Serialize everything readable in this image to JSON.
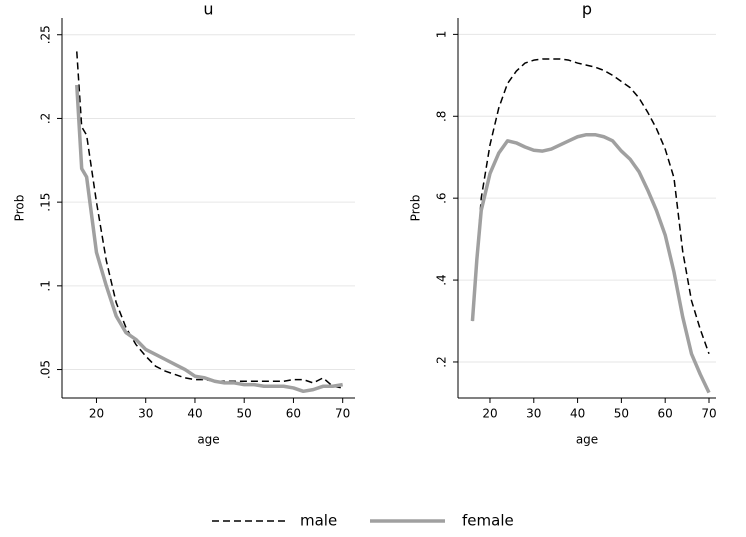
{
  "chart_data": [
    {
      "type": "line",
      "title": "u",
      "xlabel": "age",
      "ylabel": "Prob",
      "x": [
        16,
        17,
        18,
        20,
        22,
        24,
        26,
        28,
        30,
        32,
        34,
        36,
        38,
        40,
        42,
        44,
        46,
        48,
        50,
        52,
        54,
        56,
        58,
        60,
        62,
        64,
        66,
        68,
        70
      ],
      "series": [
        {
          "name": "male",
          "color": "#000000",
          "linestyle": "dashed",
          "values": [
            0.24,
            0.195,
            0.19,
            0.15,
            0.115,
            0.09,
            0.075,
            0.065,
            0.058,
            0.052,
            0.049,
            0.047,
            0.045,
            0.044,
            0.044,
            0.043,
            0.043,
            0.043,
            0.043,
            0.043,
            0.043,
            0.043,
            0.043,
            0.044,
            0.044,
            0.042,
            0.045,
            0.04,
            0.039
          ]
        },
        {
          "name": "female",
          "color": "#a0a0a0",
          "linestyle": "solid",
          "values": [
            0.22,
            0.17,
            0.165,
            0.12,
            0.1,
            0.082,
            0.072,
            0.068,
            0.062,
            0.059,
            0.056,
            0.053,
            0.05,
            0.046,
            0.045,
            0.043,
            0.042,
            0.042,
            0.041,
            0.041,
            0.04,
            0.04,
            0.04,
            0.039,
            0.037,
            0.038,
            0.04,
            0.04,
            0.041
          ]
        }
      ],
      "xlim": [
        13,
        72.5
      ],
      "xticks": [
        20,
        30,
        40,
        50,
        60,
        70
      ],
      "ylim": [
        0.033,
        0.26
      ],
      "yticks": [
        {
          "value": 0.05,
          "label": ".05"
        },
        {
          "value": 0.1,
          "label": ".1"
        },
        {
          "value": 0.15,
          "label": ".15"
        },
        {
          "value": 0.2,
          "label": ".2"
        },
        {
          "value": 0.25,
          "label": ".25"
        }
      ],
      "grid": true
    },
    {
      "type": "line",
      "title": "p",
      "xlabel": "age",
      "ylabel": "Prob",
      "x": [
        16,
        17,
        18,
        20,
        22,
        24,
        26,
        28,
        30,
        32,
        34,
        36,
        38,
        40,
        42,
        44,
        46,
        48,
        50,
        52,
        54,
        56,
        58,
        60,
        62,
        64,
        66,
        68,
        70
      ],
      "series": [
        {
          "color": "#000000",
          "linestyle": "dashed",
          "values": [
            0.3,
            0.45,
            0.6,
            0.73,
            0.82,
            0.88,
            0.91,
            0.93,
            0.937,
            0.94,
            0.94,
            0.94,
            0.937,
            0.93,
            0.925,
            0.92,
            0.912,
            0.9,
            0.885,
            0.87,
            0.845,
            0.81,
            0.77,
            0.72,
            0.65,
            0.47,
            0.35,
            0.28,
            0.22
          ]
        },
        {
          "color": "#a0a0a0",
          "linestyle": "solid",
          "values": [
            0.3,
            0.45,
            0.57,
            0.66,
            0.71,
            0.74,
            0.735,
            0.725,
            0.717,
            0.715,
            0.72,
            0.73,
            0.74,
            0.75,
            0.755,
            0.755,
            0.75,
            0.74,
            0.715,
            0.695,
            0.665,
            0.62,
            0.57,
            0.51,
            0.42,
            0.31,
            0.22,
            0.17,
            0.125
          ]
        }
      ],
      "xlim": [
        12.7,
        71.6
      ],
      "xticks": [
        20,
        30,
        40,
        50,
        60,
        70
      ],
      "ylim": [
        0.112,
        1.04
      ],
      "yticks": [
        {
          "value": 0.2,
          "label": ".2"
        },
        {
          "value": 0.4,
          "label": ".4"
        },
        {
          "value": 0.6,
          "label": ".6"
        },
        {
          "value": 0.8,
          "label": ".8"
        },
        1
      ],
      "grid": true
    }
  ]
}
